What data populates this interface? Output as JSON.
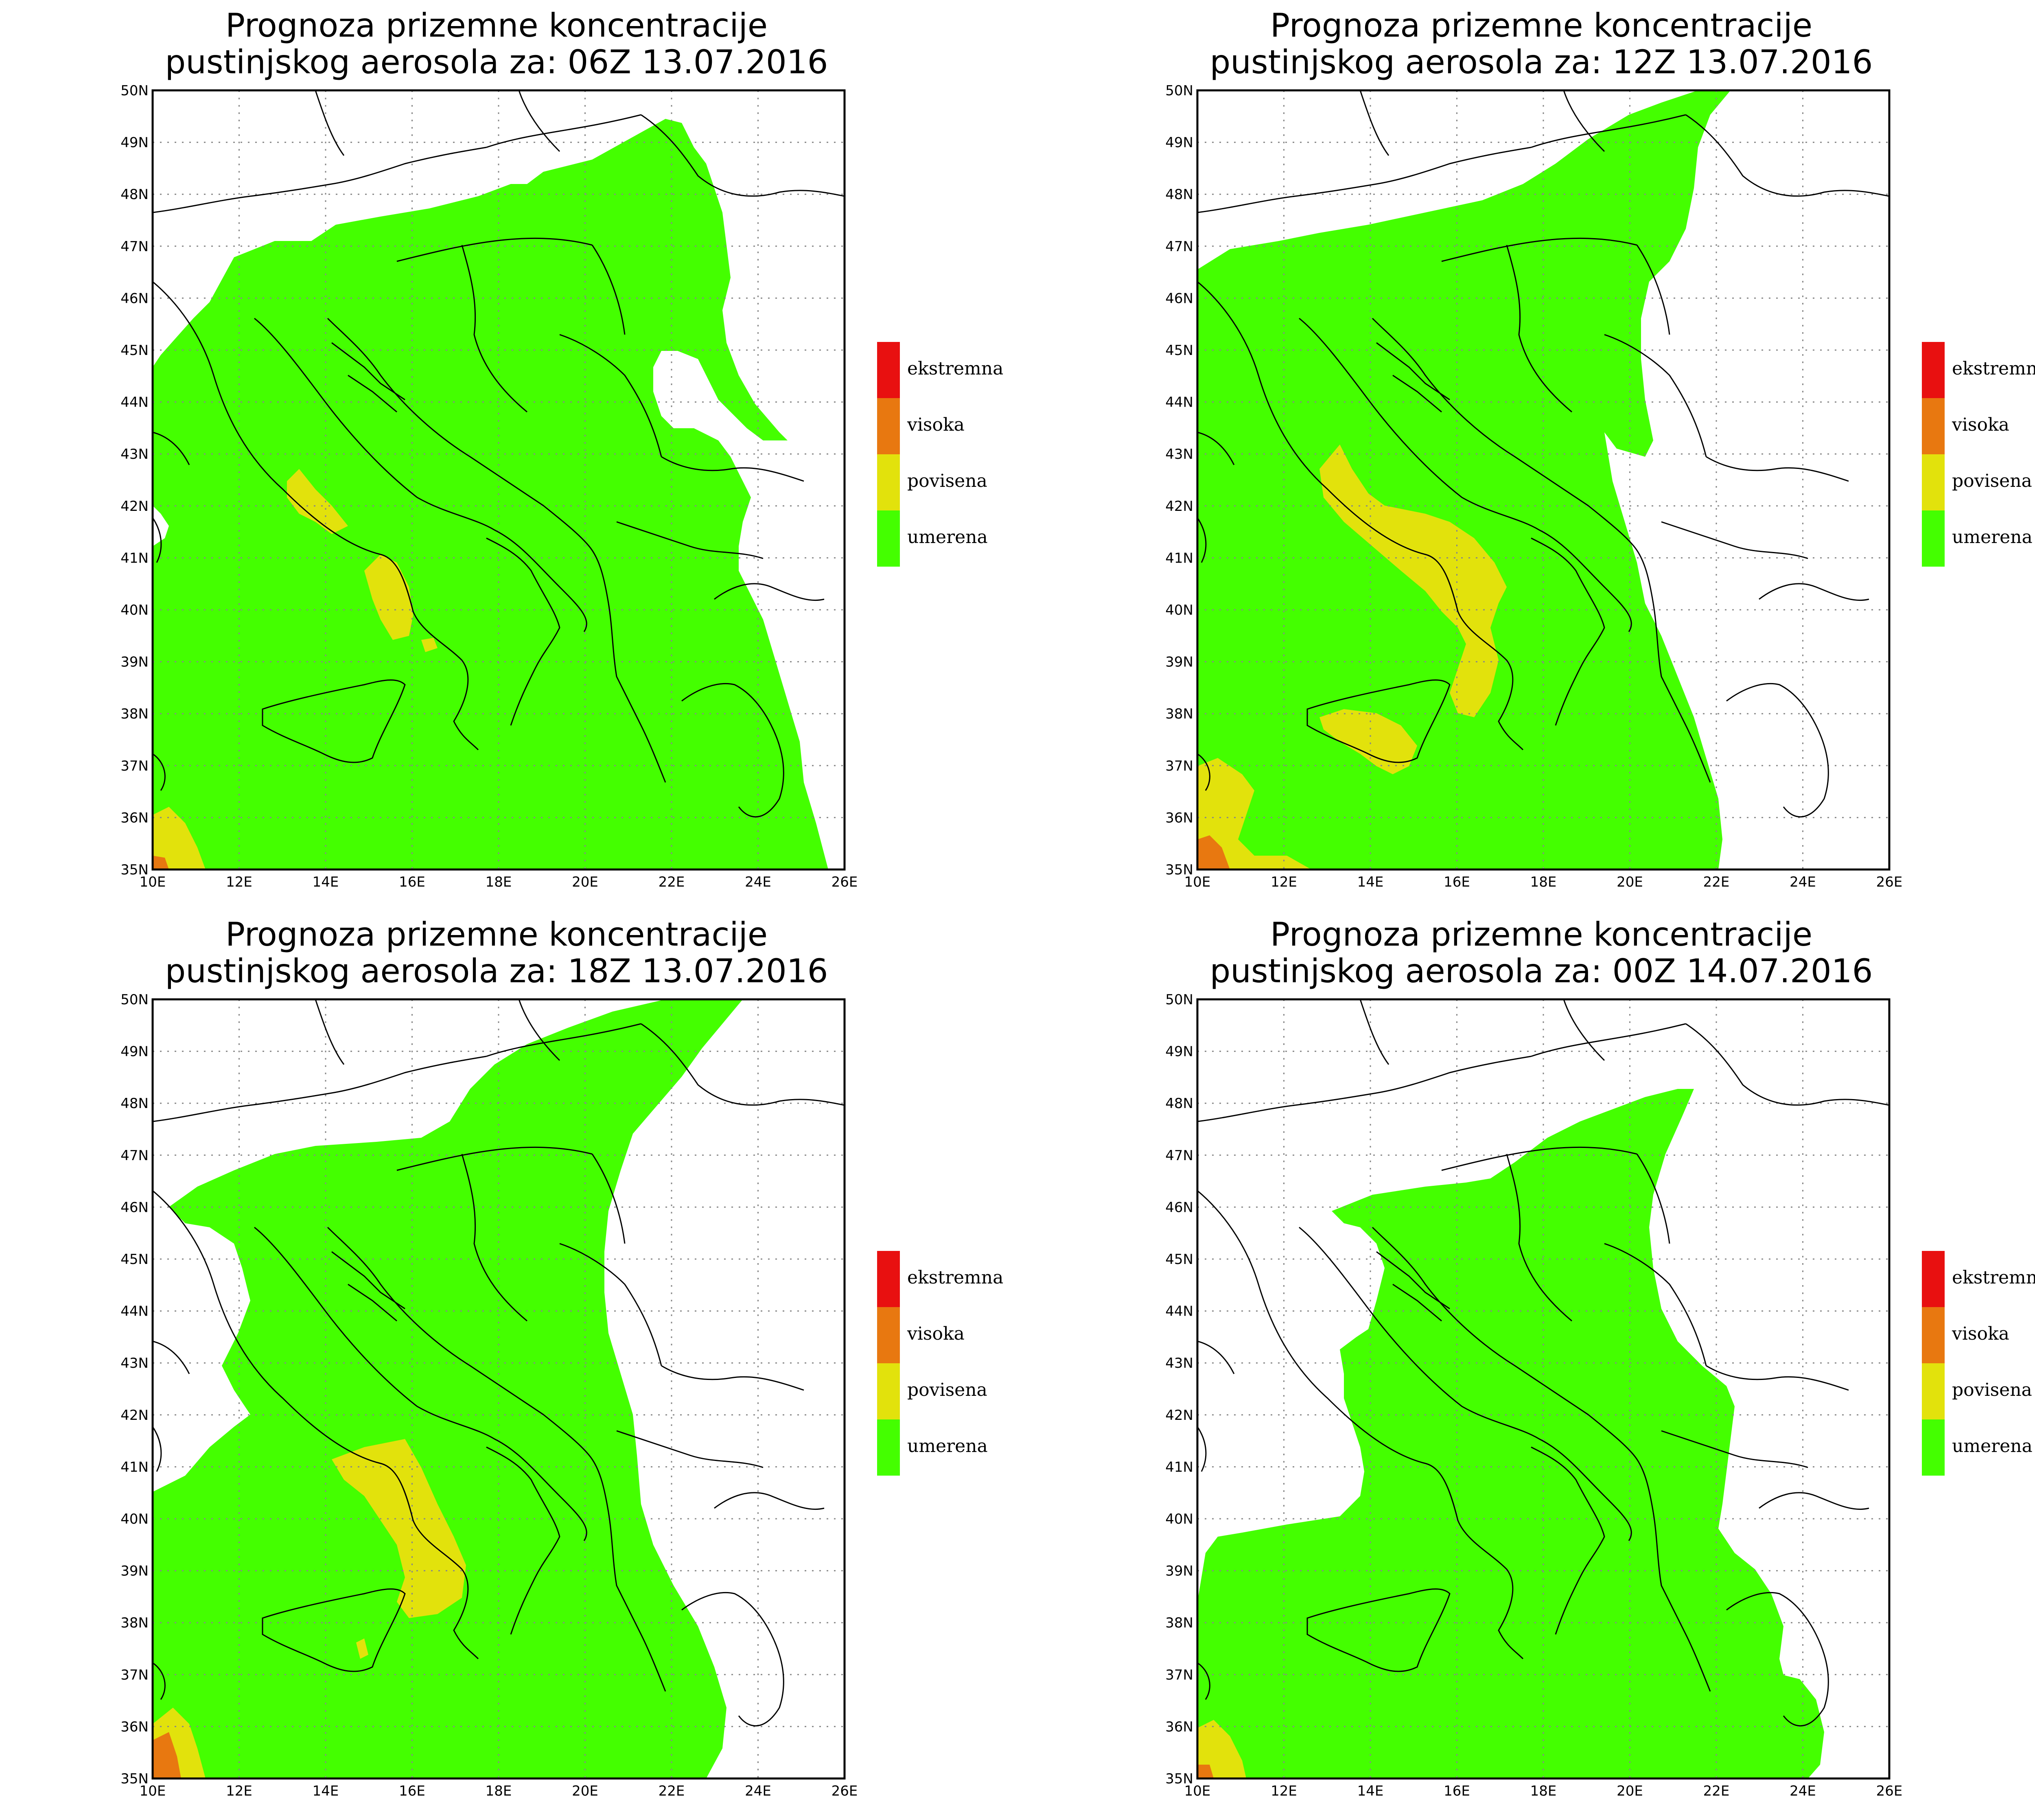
{
  "panels": [
    {
      "title_line1": "Prognoza prizemne koncentracije",
      "title_line2": "pustinjskog aerosola za: 06Z 13.07.2016"
    },
    {
      "title_line1": "Prognoza prizemne koncentracije",
      "title_line2": "pustinjskog aerosola za: 12Z 13.07.2016"
    },
    {
      "title_line1": "Prognoza prizemne koncentracije",
      "title_line2": "pustinjskog aerosola za: 18Z 13.07.2016"
    },
    {
      "title_line1": "Prognoza prizemne koncentracije",
      "title_line2": "pustinjskog aerosola za: 00Z 14.07.2016"
    }
  ],
  "axes": {
    "lon_labels": [
      "10E",
      "12E",
      "14E",
      "16E",
      "18E",
      "20E",
      "22E",
      "24E",
      "26E"
    ],
    "lat_labels": [
      "50N",
      "49N",
      "48N",
      "47N",
      "46N",
      "45N",
      "44N",
      "43N",
      "42N",
      "41N",
      "40N",
      "39N",
      "38N",
      "37N",
      "36N",
      "35N"
    ]
  },
  "legend": [
    {
      "label": "ekstremna",
      "color": "#e81010"
    },
    {
      "label": "visoka",
      "color": "#e87810"
    },
    {
      "label": "povisena",
      "color": "#e2e20c"
    },
    {
      "label": "umerena",
      "color": "#44ff00"
    }
  ],
  "colors": {
    "umerena": "#44ff00",
    "povisena": "#e2e20c",
    "visoka": "#e87810",
    "ekstremna": "#e81010",
    "border": "#000000",
    "grid": "#888888"
  }
}
